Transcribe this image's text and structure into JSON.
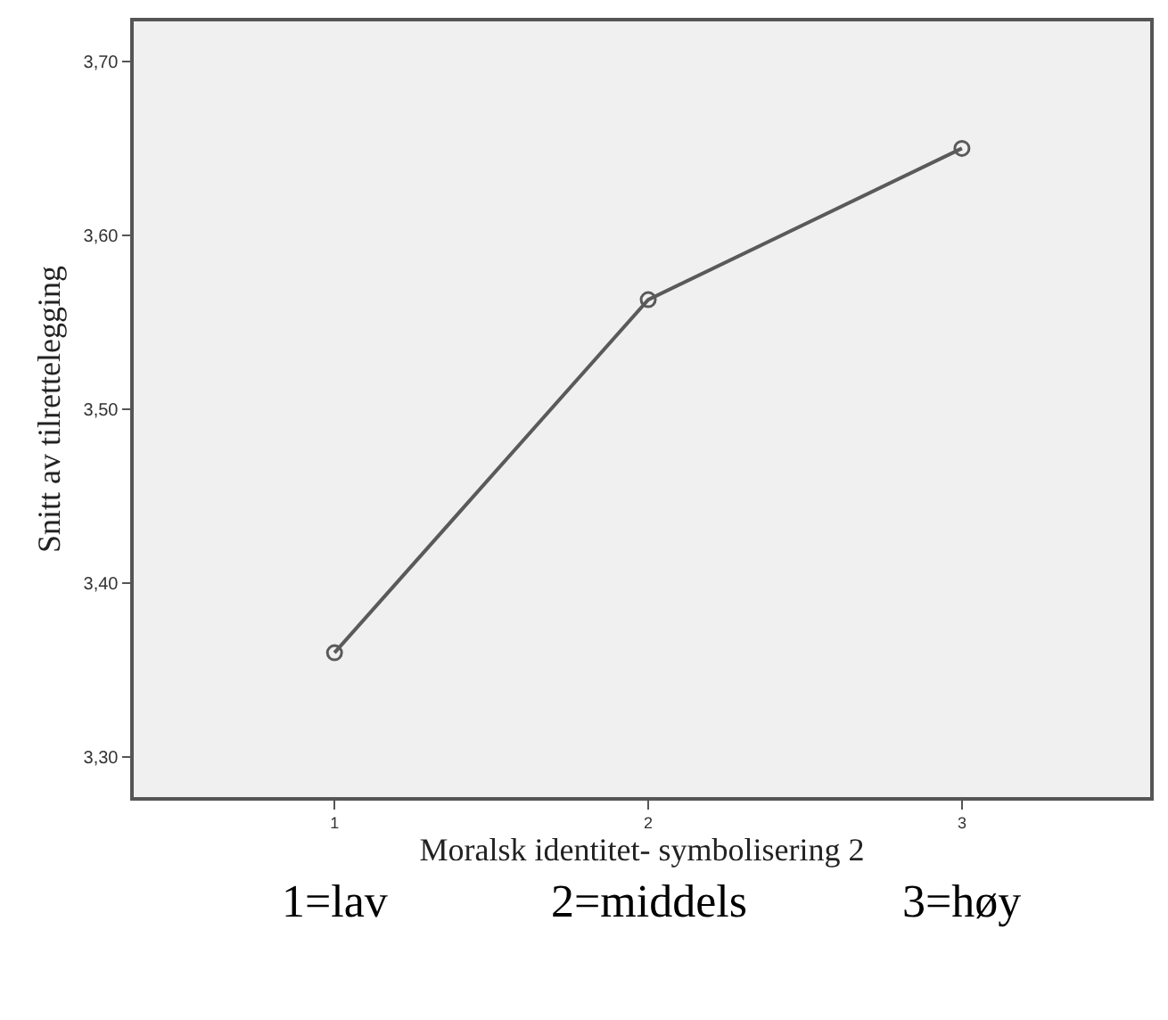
{
  "chart_data": {
    "type": "line",
    "xlabel": "Moralsk identitet- symbolisering 2",
    "ylabel": "Snitt av tilrettelegging",
    "x": [
      1,
      2,
      3
    ],
    "series": [
      {
        "color": "#5a5a5a",
        "values": [
          3.36,
          3.563,
          3.65
        ]
      }
    ],
    "xlim": [
      0.36,
      3.6
    ],
    "xticks": [
      1,
      2,
      3
    ],
    "ylim": [
      3.277,
      3.723
    ],
    "yticks": [
      {
        "value": 3.3,
        "label": "3,30"
      },
      {
        "value": 3.4,
        "label": "3,40"
      },
      {
        "value": 3.5,
        "label": "3,50"
      },
      {
        "value": 3.6,
        "label": "3,60"
      },
      {
        "value": 3.7,
        "label": "3,70"
      }
    ],
    "marker": "circle",
    "line_style": "solid",
    "annotations": [
      "1=lav",
      "2=middels",
      "3=høy"
    ]
  }
}
